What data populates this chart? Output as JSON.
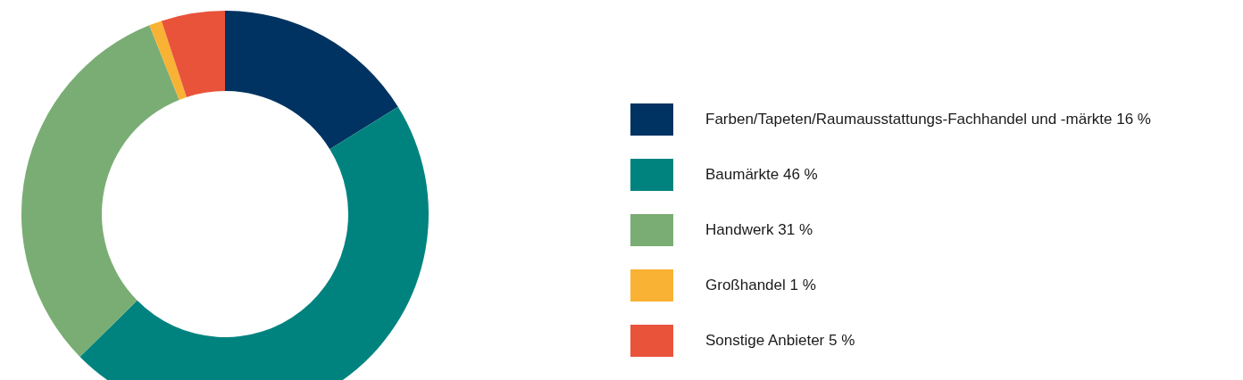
{
  "chart_data": {
    "type": "donut",
    "categories": [
      "Farben/Tapeten/Raumausstattungs-Fachhandel und -märkte",
      "Baumärkte",
      "Handwerk",
      "Großhandel",
      "Sonstige Anbieter"
    ],
    "values": [
      16,
      46,
      31,
      1,
      5
    ],
    "value_labels": [
      "16 %",
      "46 %",
      "31 %",
      "1 %",
      "5 %"
    ],
    "colors": [
      "#003361",
      "#00837f",
      "#7aad74",
      "#f9b233",
      "#e8533a"
    ],
    "legend": "right"
  }
}
